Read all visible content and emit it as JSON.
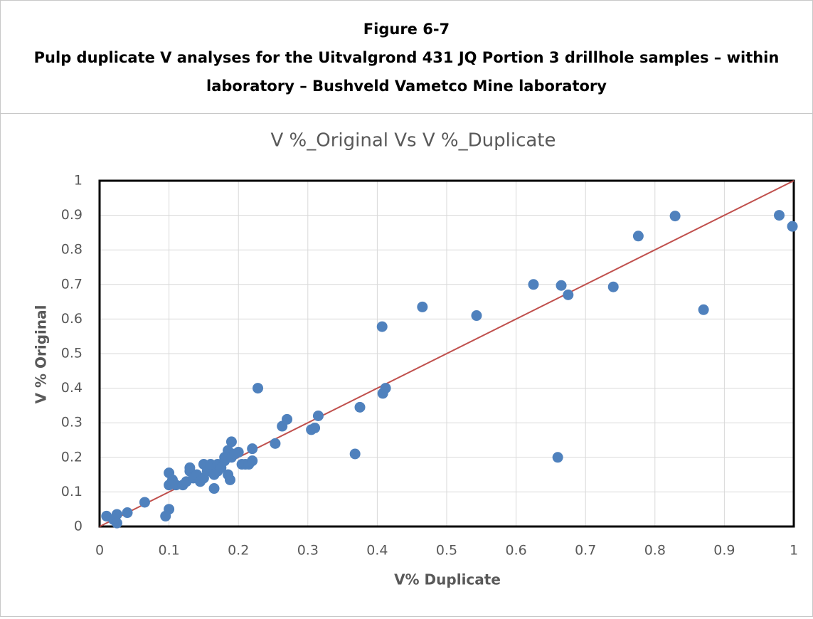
{
  "header": {
    "figure": "Figure 6-7",
    "caption_line1": "Pulp duplicate V analyses for the Uitvalgrond 431 JQ Portion 3 drillhole samples – within",
    "caption_line2": "laboratory – Bushveld Vametco Mine laboratory"
  },
  "chart_data": {
    "type": "scatter",
    "title": "V %_Original  Vs V %_Duplicate",
    "x_label": "V%  Duplicate",
    "y_label": "V % Original",
    "xlim": [
      0,
      1
    ],
    "ylim": [
      0,
      1
    ],
    "xticks": [
      0,
      0.1,
      0.2,
      0.3,
      0.4,
      0.5,
      0.6,
      0.7,
      0.8,
      0.9,
      1
    ],
    "yticks": [
      0,
      0.1,
      0.2,
      0.3,
      0.4,
      0.5,
      0.6,
      0.7,
      0.8,
      0.9,
      1
    ],
    "grid": true,
    "line_color": "#c0504d",
    "series": [
      {
        "color": "#4f81bd",
        "x": [
          0.01,
          0.02,
          0.025,
          0.025,
          0.04,
          0.065,
          0.095,
          0.1,
          0.1,
          0.1,
          0.105,
          0.11,
          0.12,
          0.125,
          0.13,
          0.13,
          0.135,
          0.14,
          0.145,
          0.15,
          0.15,
          0.155,
          0.16,
          0.16,
          0.165,
          0.165,
          0.17,
          0.17,
          0.175,
          0.18,
          0.18,
          0.185,
          0.185,
          0.188,
          0.19,
          0.19,
          0.195,
          0.2,
          0.205,
          0.21,
          0.215,
          0.22,
          0.22,
          0.228,
          0.253,
          0.263,
          0.27,
          0.305,
          0.31,
          0.315,
          0.368,
          0.375,
          0.407,
          0.408,
          0.412,
          0.465,
          0.543,
          0.625,
          0.66,
          0.665,
          0.675,
          0.74,
          0.776,
          0.829,
          0.87,
          0.979,
          0.998
        ],
        "values": [
          0.03,
          0.02,
          0.035,
          0.01,
          0.04,
          0.07,
          0.03,
          0.05,
          0.12,
          0.155,
          0.135,
          0.12,
          0.12,
          0.13,
          0.16,
          0.17,
          0.14,
          0.15,
          0.13,
          0.14,
          0.18,
          0.16,
          0.17,
          0.18,
          0.11,
          0.15,
          0.16,
          0.18,
          0.17,
          0.19,
          0.2,
          0.15,
          0.22,
          0.135,
          0.245,
          0.2,
          0.21,
          0.215,
          0.18,
          0.18,
          0.18,
          0.19,
          0.225,
          0.4,
          0.24,
          0.29,
          0.31,
          0.28,
          0.285,
          0.32,
          0.21,
          0.345,
          0.578,
          0.385,
          0.4,
          0.635,
          0.61,
          0.7,
          0.2,
          0.697,
          0.67,
          0.693,
          0.84,
          0.898,
          0.627,
          0.9,
          0.868
        ]
      }
    ]
  }
}
